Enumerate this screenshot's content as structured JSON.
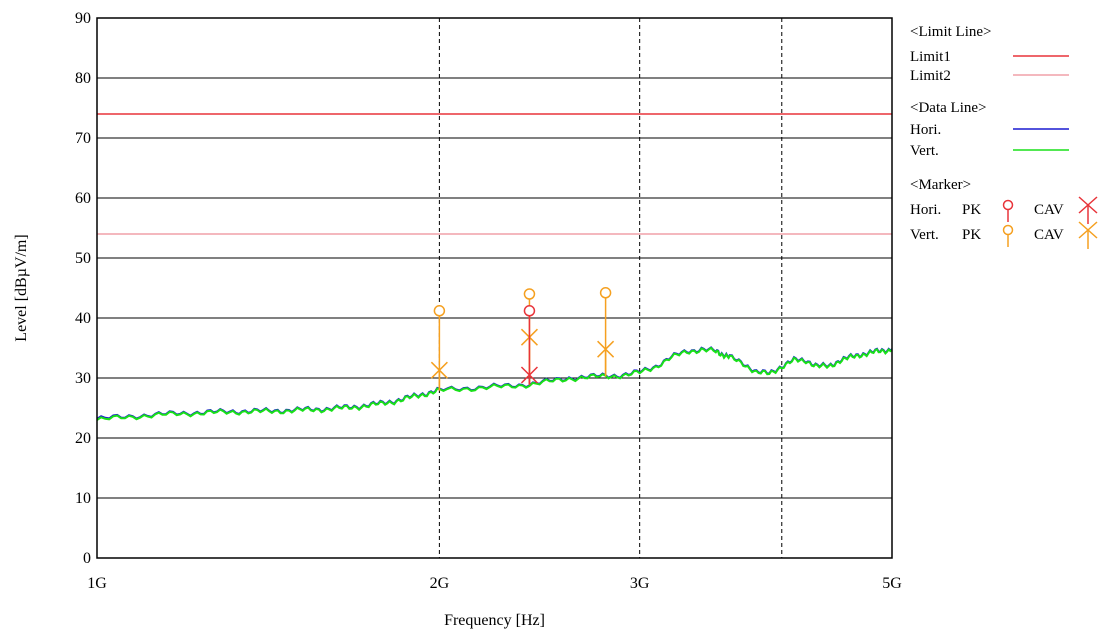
{
  "chart_data": {
    "type": "line",
    "xlabel": "Frequency [Hz]",
    "ylabel": "Level [dBµV/m]",
    "x_scale": "log",
    "xlim_hz": [
      1000000000,
      5000000000
    ],
    "ylim": [
      0,
      90
    ],
    "y_ticks": [
      0,
      10,
      20,
      30,
      40,
      50,
      60,
      70,
      80,
      90
    ],
    "x_ticks": [
      {
        "value": 1000000000,
        "label": "1G"
      },
      {
        "value": 2000000000,
        "label": "2G"
      },
      {
        "value": 3000000000,
        "label": "3G"
      },
      {
        "value": 5000000000,
        "label": "5G"
      }
    ],
    "grid": {
      "horizontal": "solid",
      "vertical": "dashed"
    },
    "vertical_gridlines_hz": [
      2000000000,
      3000000000,
      4000000000
    ],
    "limits": [
      {
        "name": "Limit1",
        "value": 74,
        "color": "#e8343a"
      },
      {
        "name": "Limit2",
        "value": 54,
        "color": "#f0a0a8"
      }
    ],
    "series": [
      {
        "name": "Hori.",
        "color": "#1a1ad0",
        "x_ghz": [
          1.0,
          1.05,
          1.1,
          1.15,
          1.2,
          1.25,
          1.3,
          1.35,
          1.4,
          1.45,
          1.5,
          1.55,
          1.6,
          1.65,
          1.7,
          1.75,
          1.8,
          1.85,
          1.9,
          1.95,
          2.0,
          2.1,
          2.2,
          2.3,
          2.4,
          2.5,
          2.6,
          2.7,
          2.8,
          2.9,
          3.0,
          3.1,
          3.2,
          3.3,
          3.4,
          3.5,
          3.55,
          3.6,
          3.7,
          3.8,
          3.9,
          4.0,
          4.1,
          4.2,
          4.3,
          4.4,
          4.5,
          4.6,
          4.7,
          4.8,
          4.9,
          5.0
        ],
        "y": [
          23.2,
          23.5,
          23.8,
          24.0,
          24.2,
          24.3,
          24.4,
          24.5,
          24.5,
          24.6,
          24.7,
          24.8,
          24.9,
          25.1,
          25.3,
          25.6,
          26.0,
          26.4,
          27.0,
          27.5,
          28.0,
          28.3,
          28.5,
          28.7,
          29.0,
          29.5,
          30.0,
          30.2,
          30.4,
          30.5,
          31.0,
          32.0,
          33.5,
          34.5,
          34.8,
          34.5,
          34.0,
          33.5,
          32.5,
          31.0,
          30.8,
          32.0,
          33.0,
          33.0,
          32.0,
          32.0,
          33.0,
          33.5,
          34.0,
          34.3,
          34.6,
          34.8
        ]
      },
      {
        "name": "Vert.",
        "color": "#19e019",
        "x_ghz": [
          1.0,
          1.05,
          1.1,
          1.15,
          1.2,
          1.25,
          1.3,
          1.35,
          1.4,
          1.45,
          1.5,
          1.55,
          1.6,
          1.65,
          1.7,
          1.75,
          1.8,
          1.85,
          1.9,
          1.95,
          2.0,
          2.1,
          2.2,
          2.3,
          2.4,
          2.5,
          2.6,
          2.7,
          2.8,
          2.9,
          3.0,
          3.1,
          3.2,
          3.3,
          3.4,
          3.5,
          3.55,
          3.6,
          3.7,
          3.8,
          3.9,
          4.0,
          4.1,
          4.2,
          4.3,
          4.4,
          4.5,
          4.6,
          4.7,
          4.8,
          4.9,
          5.0
        ],
        "y": [
          23.0,
          23.4,
          23.7,
          23.9,
          24.1,
          24.2,
          24.3,
          24.4,
          24.4,
          24.5,
          24.6,
          24.7,
          24.8,
          25.0,
          25.2,
          25.5,
          25.9,
          26.3,
          26.9,
          27.4,
          27.9,
          28.2,
          28.4,
          28.6,
          28.9,
          29.4,
          29.9,
          30.1,
          30.3,
          30.4,
          30.9,
          31.9,
          33.4,
          34.4,
          34.7,
          34.4,
          33.9,
          33.4,
          32.4,
          30.9,
          30.7,
          31.9,
          32.9,
          32.9,
          31.9,
          31.9,
          32.9,
          33.4,
          33.9,
          34.2,
          34.5,
          34.7
        ]
      }
    ],
    "markers": [
      {
        "series": "Vert.",
        "detector": "PK",
        "x_ghz": 2.0,
        "y": 41.2,
        "color": "#f5a020"
      },
      {
        "series": "Vert.",
        "detector": "CAV",
        "x_ghz": 2.0,
        "y": 31.3,
        "color": "#f5a020"
      },
      {
        "series": "Vert.",
        "detector": "PK",
        "x_ghz": 2.4,
        "y": 44.0,
        "color": "#f5a020"
      },
      {
        "series": "Vert.",
        "detector": "CAV",
        "x_ghz": 2.4,
        "y": 36.8,
        "color": "#f5a020"
      },
      {
        "series": "Hori.",
        "detector": "PK",
        "x_ghz": 2.4,
        "y": 41.2,
        "color": "#e8343a"
      },
      {
        "series": "Hori.",
        "detector": "CAV",
        "x_ghz": 2.4,
        "y": 30.5,
        "color": "#e8343a"
      },
      {
        "series": "Vert.",
        "detector": "PK",
        "x_ghz": 2.8,
        "y": 44.2,
        "color": "#f5a020"
      },
      {
        "series": "Vert.",
        "detector": "CAV",
        "x_ghz": 2.8,
        "y": 34.8,
        "color": "#f5a020"
      }
    ],
    "legend": {
      "placement": "right",
      "limit_header": "<Limit Line>",
      "data_header": "<Data Line>",
      "marker_header": "<Marker>",
      "marker_rows": [
        {
          "label": "Hori.",
          "pk": "PK",
          "cav": "CAV",
          "color": "#e8343a"
        },
        {
          "label": "Vert.",
          "pk": "PK",
          "cav": "CAV",
          "color": "#f5a020"
        }
      ]
    }
  }
}
